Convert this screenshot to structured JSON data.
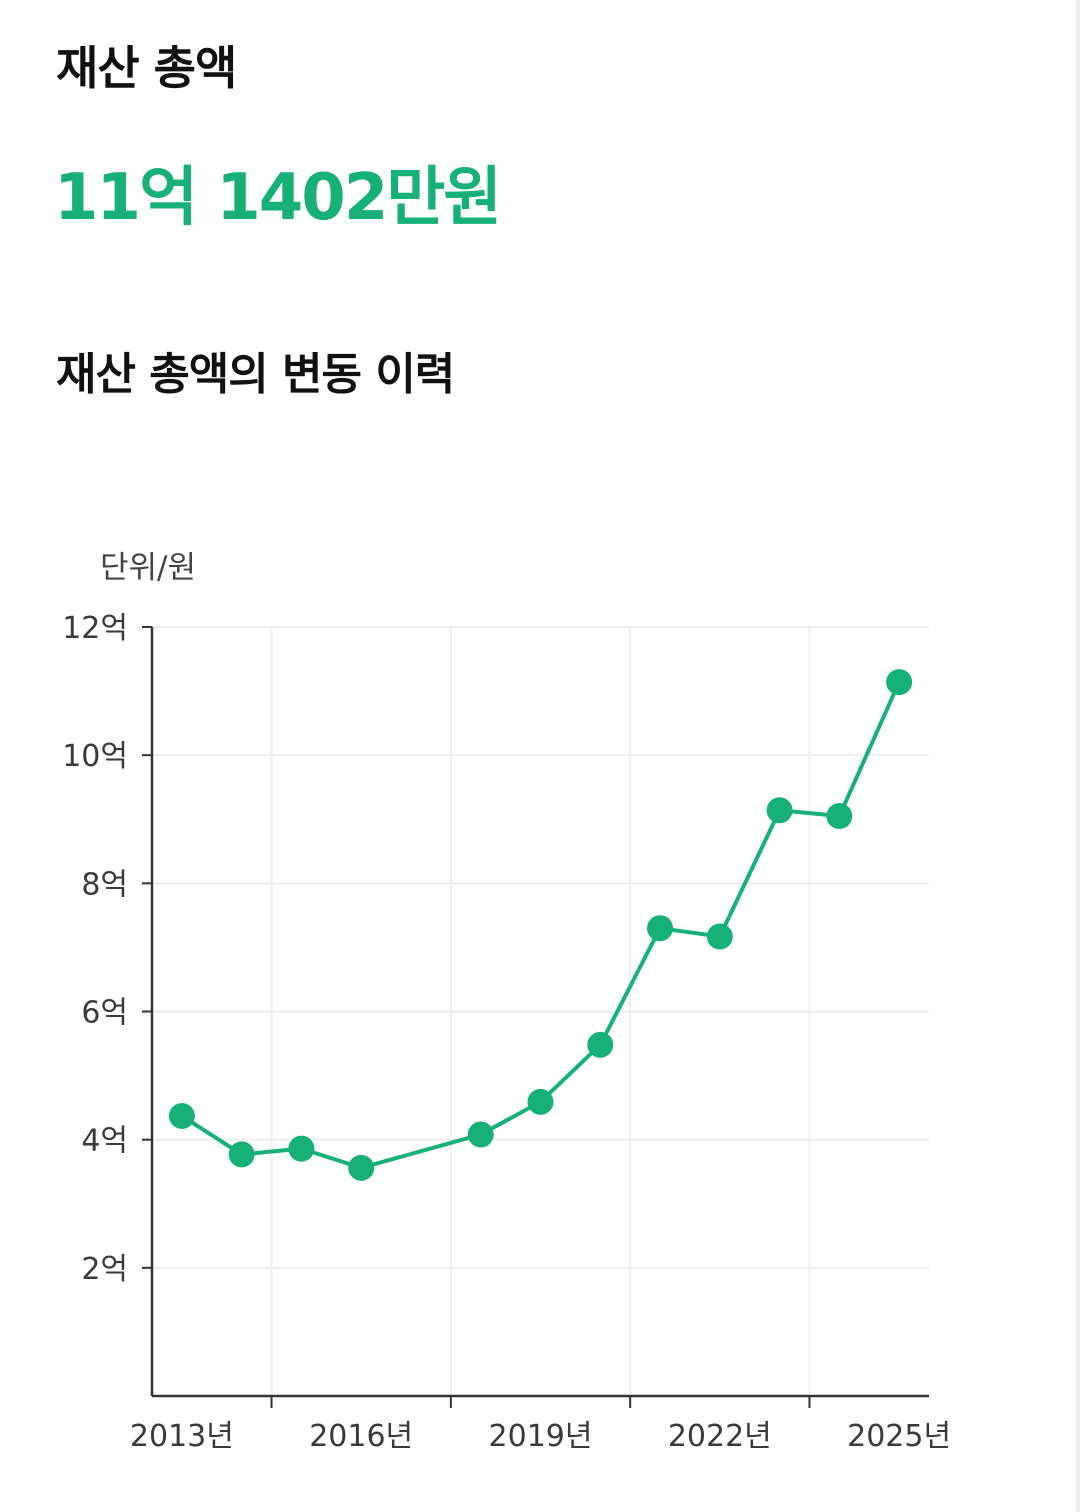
{
  "header": {
    "title": "재산 총액",
    "total_amount": "11억 1402만원",
    "history_title": "재산 총액의 변동 이력"
  },
  "colors": {
    "accent": "#17b177",
    "axis": "#333333",
    "grid": "#eeeeee",
    "text": "#111111"
  },
  "chart_data": {
    "type": "line",
    "unit_label": "단위/원",
    "ylim": [
      0,
      12
    ],
    "y_ticks": [
      {
        "value": 2,
        "label": "2억"
      },
      {
        "value": 4,
        "label": "4억"
      },
      {
        "value": 6,
        "label": "6억"
      },
      {
        "value": 8,
        "label": "8억"
      },
      {
        "value": 10,
        "label": "10억"
      },
      {
        "value": 12,
        "label": "12억"
      }
    ],
    "xlim": [
      2012.5,
      2025.5
    ],
    "x_ticks": [
      {
        "value": 2013,
        "label": "2013년"
      },
      {
        "value": 2016,
        "label": "2016년"
      },
      {
        "value": 2019,
        "label": "2019년"
      },
      {
        "value": 2022,
        "label": "2022년"
      },
      {
        "value": 2025,
        "label": "2025년"
      }
    ],
    "x_gridlines": [
      2014.5,
      2017.5,
      2020.5,
      2023.5
    ],
    "grid": true,
    "series": [
      {
        "color": "#17b177",
        "points": [
          {
            "x": 2013,
            "y": 4.37
          },
          {
            "x": 2014,
            "y": 3.77
          },
          {
            "x": 2015,
            "y": 3.86
          },
          {
            "x": 2016,
            "y": 3.56
          },
          {
            "x": 2018,
            "y": 4.08
          },
          {
            "x": 2019,
            "y": 4.59
          },
          {
            "x": 2020,
            "y": 5.48
          },
          {
            "x": 2021,
            "y": 7.3
          },
          {
            "x": 2022,
            "y": 7.17
          },
          {
            "x": 2023,
            "y": 9.14
          },
          {
            "x": 2024,
            "y": 9.05
          },
          {
            "x": 2025,
            "y": 11.14
          }
        ]
      }
    ]
  }
}
